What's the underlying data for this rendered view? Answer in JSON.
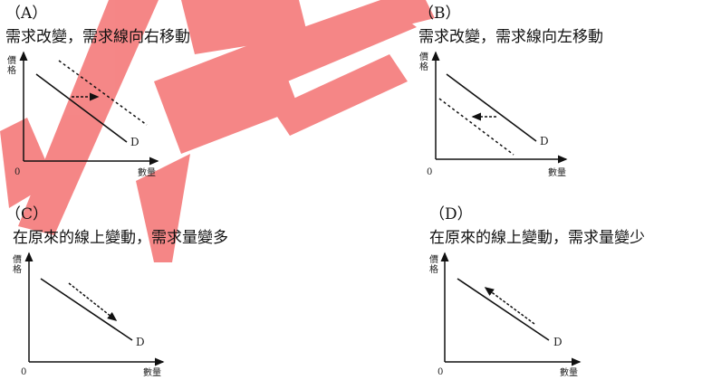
{
  "axis_labels": {
    "y": [
      "價",
      "格"
    ],
    "x": "數量",
    "origin": "0",
    "curve": "D"
  },
  "panels": [
    {
      "label": "（A）",
      "title": "需求改變，需求線向右移動"
    },
    {
      "label": "（B）",
      "title": "需求改變，需求線向左移動"
    },
    {
      "label": "（C）",
      "title": "在原來的線上變動，需求量變多"
    },
    {
      "label": "（D）",
      "title": "在原來的線上變動，需求量變少"
    }
  ],
  "colors": {
    "watermark": "#f47a7a",
    "line": "#111111"
  }
}
